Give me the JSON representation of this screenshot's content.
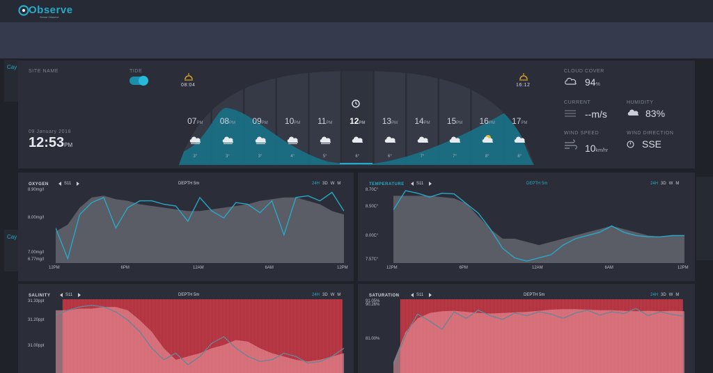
{
  "brand": {
    "name": "Observe",
    "tagline": "Sense Observe"
  },
  "header": {
    "site_name_label": "SITE NAME",
    "tide_label": "TIDE",
    "date": "09 January 2018",
    "time": "12:53",
    "time_suffix": "PM",
    "sunrise": "08:04",
    "sunset": "16:12"
  },
  "forecast": {
    "hours": [
      {
        "h": "07",
        "suf": "PM",
        "temp": "3°"
      },
      {
        "h": "08",
        "suf": "PM",
        "temp": "3°"
      },
      {
        "h": "09",
        "suf": "PM",
        "temp": "3°"
      },
      {
        "h": "10",
        "suf": "PM",
        "temp": "4°"
      },
      {
        "h": "11",
        "suf": "PM",
        "temp": "5°"
      },
      {
        "h": "12",
        "suf": "PM",
        "temp": "6°"
      },
      {
        "h": "13",
        "suf": "PM",
        "temp": "6°"
      },
      {
        "h": "14",
        "suf": "PM",
        "temp": "7°"
      },
      {
        "h": "15",
        "suf": "PM",
        "temp": "7°"
      },
      {
        "h": "16",
        "suf": "PM",
        "temp": "8°"
      },
      {
        "h": "17",
        "suf": "PM",
        "temp": "8°"
      }
    ]
  },
  "conditions": {
    "cloud_cover_label": "CLOUD COVER",
    "cloud_cover": "94",
    "cloud_unit": "%",
    "current_label": "CURRENT",
    "current": "--m/s",
    "humidity_label": "HUMIDITY",
    "humidity": "83%",
    "wind_speed_label": "WIND SPEED",
    "wind_speed": "10",
    "wind_unit": "km/hr",
    "wind_dir_label": "WIND DIRECTION",
    "wind_dir": "SSE"
  },
  "colors": {
    "accent": "#27a9c7",
    "tide": "#1a6f84",
    "gray_area": "#5a5d66",
    "red": "#e23a48"
  },
  "range_tabs": [
    "24H",
    "3D",
    "W",
    "M"
  ],
  "charts": [
    {
      "title": "OXYGEN",
      "site": "S11",
      "depth": "DEPTH 5m",
      "y_labels": [
        "8.90mg/l",
        "8.00mg/l",
        "7.00mg/l",
        "6.77mg/l"
      ],
      "x_labels": [
        "12PM",
        "6PM",
        "12AM",
        "6AM",
        "12PM"
      ]
    },
    {
      "title": "TEMPERATURE",
      "site": "S11",
      "depth": "DEPTH 5m",
      "y_labels": [
        "8.70C°",
        "8.50C°",
        "8.00C°",
        "7.57C°"
      ],
      "x_labels": [
        "12PM",
        "6PM",
        "12AM",
        "6AM",
        "12PM"
      ]
    },
    {
      "title": "SALINITY",
      "site": "S11",
      "depth": "DEPTH 5m",
      "y_labels": [
        "31.33ppt",
        "31.20ppt",
        "31.00ppt"
      ],
      "x_labels": []
    },
    {
      "title": "SATURATION",
      "site": "S11",
      "depth": "DEPTH 5m",
      "y_labels": [
        "91.05%",
        "90.26%",
        "81.00%"
      ],
      "x_labels": []
    }
  ],
  "chart_data": [
    {
      "type": "area",
      "title": "OXYGEN",
      "unit": "mg/l",
      "ylim": [
        6.77,
        8.9
      ],
      "x": [
        0,
        1,
        2,
        3,
        4,
        5,
        6,
        7,
        8,
        9,
        10,
        11,
        12,
        13,
        14,
        15,
        16,
        17,
        18,
        19,
        20,
        21,
        22,
        23,
        24
      ],
      "series": [
        {
          "name": "range",
          "values": [
            7.7,
            7.9,
            8.4,
            8.7,
            8.75,
            8.65,
            8.6,
            8.5,
            8.45,
            8.4,
            8.35,
            8.3,
            8.3,
            8.35,
            8.4,
            8.45,
            8.5,
            8.6,
            8.65,
            8.7,
            8.7,
            8.6,
            8.5,
            8.3,
            8.2
          ]
        },
        {
          "name": "reading",
          "values": [
            7.8,
            6.9,
            8.2,
            8.55,
            8.7,
            7.8,
            8.4,
            8.6,
            8.6,
            8.5,
            8.45,
            8.0,
            8.7,
            8.3,
            8.1,
            8.55,
            8.5,
            8.25,
            8.6,
            7.6,
            8.7,
            8.75,
            8.6,
            8.85,
            8.3
          ]
        }
      ]
    },
    {
      "type": "area",
      "title": "TEMPERATURE",
      "unit": "C°",
      "ylim": [
        7.57,
        8.7
      ],
      "x": [
        0,
        1,
        2,
        3,
        4,
        5,
        6,
        7,
        8,
        9,
        10,
        11,
        12,
        13,
        14,
        15,
        16,
        17,
        18,
        19,
        20,
        21,
        22,
        23,
        24
      ],
      "series": [
        {
          "name": "range",
          "values": [
            8.62,
            8.62,
            8.62,
            8.62,
            8.6,
            8.58,
            8.5,
            8.3,
            8.1,
            7.95,
            7.95,
            7.9,
            7.85,
            7.9,
            7.95,
            8.0,
            8.05,
            8.1,
            8.15,
            8.1,
            8.05,
            8.0,
            7.98,
            8.0,
            8.0
          ]
        },
        {
          "name": "reading",
          "values": [
            8.4,
            8.7,
            8.66,
            8.6,
            8.66,
            8.65,
            8.5,
            8.35,
            8.1,
            7.8,
            7.65,
            7.6,
            7.65,
            7.7,
            7.85,
            7.95,
            8.0,
            8.05,
            8.15,
            8.05,
            8.0,
            7.98,
            7.98,
            8.0,
            8.0
          ]
        }
      ]
    },
    {
      "type": "area",
      "title": "SALINITY",
      "unit": "ppt",
      "ylim": [
        30.9,
        31.33
      ],
      "x": [
        0,
        1,
        2,
        3,
        4,
        5,
        6,
        7,
        8,
        9,
        10,
        11,
        12,
        13,
        14,
        15,
        16,
        17,
        18,
        19,
        20,
        21,
        22,
        23,
        24
      ],
      "series": [
        {
          "name": "range",
          "values": [
            31.28,
            31.28,
            31.29,
            31.29,
            31.3,
            31.3,
            31.28,
            31.22,
            31.15,
            31.05,
            30.98,
            31.0,
            31.02,
            31.05,
            31.07,
            31.1,
            31.09,
            31.05,
            31.02,
            31.0,
            30.98,
            30.97,
            30.98,
            31.0,
            31.02
          ]
        },
        {
          "name": "reading",
          "values": [
            31.25,
            31.28,
            31.3,
            31.31,
            31.3,
            31.27,
            31.22,
            31.15,
            31.05,
            30.98,
            31.02,
            30.95,
            31.0,
            31.08,
            31.12,
            31.05,
            31.0,
            30.97,
            30.98,
            31.02,
            31.0,
            30.96,
            30.97,
            31.0,
            31.05
          ]
        }
      ]
    },
    {
      "type": "area",
      "title": "SATURATION",
      "unit": "%",
      "ylim": [
        79.0,
        92.0
      ],
      "x": [
        0,
        1,
        2,
        3,
        4,
        5,
        6,
        7,
        8,
        9,
        10,
        11,
        12,
        13,
        14,
        15,
        16,
        17,
        18,
        19,
        20,
        21,
        22,
        23,
        24
      ],
      "series": [
        {
          "name": "range",
          "values": [
            81.0,
            86.5,
            89.0,
            90.0,
            90.3,
            90.4,
            90.2,
            90.0,
            89.9,
            90.0,
            90.1,
            90.2,
            90.4,
            90.6,
            90.7,
            90.7,
            90.6,
            90.5,
            90.5,
            90.4,
            90.3,
            90.4,
            90.3,
            90.4,
            90.3
          ]
        },
        {
          "name": "reading",
          "values": [
            80.5,
            86.0,
            89.8,
            88.5,
            87.0,
            90.2,
            89.0,
            90.5,
            89.5,
            88.8,
            90.0,
            89.5,
            90.2,
            89.8,
            89.0,
            90.0,
            90.5,
            89.6,
            90.2,
            89.9,
            90.8,
            89.5,
            90.2,
            89.7,
            89.4
          ]
        }
      ]
    }
  ]
}
